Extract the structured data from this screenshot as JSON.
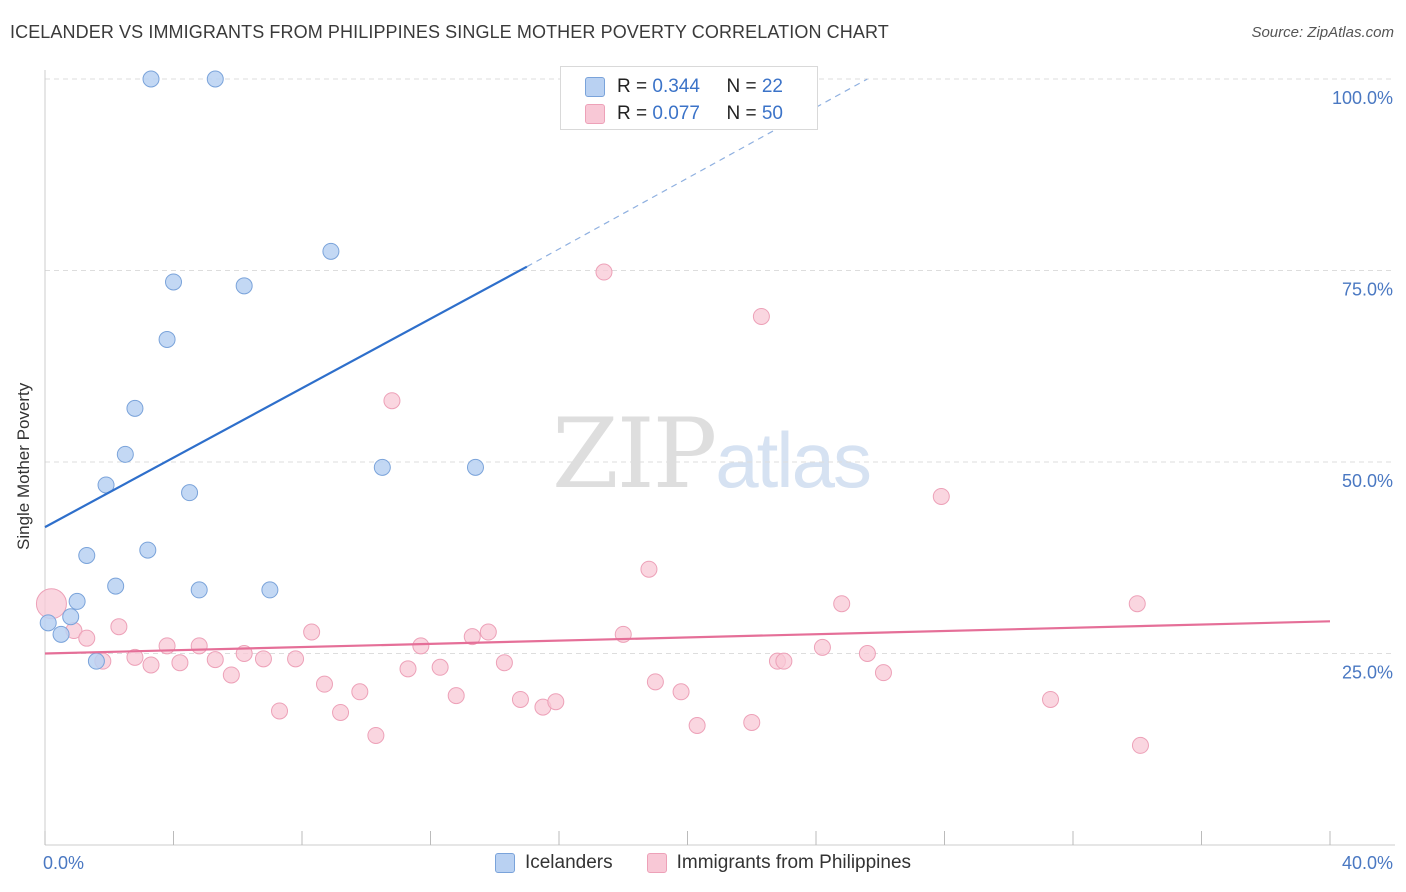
{
  "title": "ICELANDER VS IMMIGRANTS FROM PHILIPPINES SINGLE MOTHER POVERTY CORRELATION CHART",
  "source": "Source: ZipAtlas.com",
  "watermark": {
    "part1": "ZIP",
    "part2": "atlas"
  },
  "legend_box": {
    "rows": [
      {
        "r_label": "R = ",
        "r_value": "0.344",
        "n_label": "N = ",
        "n_value": "22"
      },
      {
        "r_label": "R = ",
        "r_value": "0.077",
        "n_label": "N = ",
        "n_value": "50"
      }
    ]
  },
  "legend_bottom": [
    "Icelanders",
    "Immigrants from Philippines"
  ],
  "colors": {
    "blue_fill": "#b9d1f2",
    "blue_stroke": "#7aa3da",
    "blue_line": "#2e6fcb",
    "pink_fill": "#f8c8d6",
    "pink_stroke": "#eda1b8",
    "pink_line": "#e56f98",
    "grid": "#dddddd",
    "tick_text": "#4a78c2"
  },
  "chart_data": {
    "type": "scatter",
    "title": "ICELANDER VS IMMIGRANTS FROM PHILIPPINES SINGLE MOTHER POVERTY CORRELATION CHART",
    "xlabel": "",
    "ylabel": "Single Mother Poverty",
    "xlim": [
      0,
      40
    ],
    "ylim": [
      0,
      100
    ],
    "x_tick_labels": [
      "0.0%",
      "40.0%"
    ],
    "y_tick_values": [
      25,
      50,
      75,
      100
    ],
    "y_tick_labels": [
      "25.0%",
      "50.0%",
      "75.0%",
      "100.0%"
    ],
    "grid": true,
    "legend_placement": "bottom",
    "series": [
      {
        "name": "Icelanders",
        "r": 0.344,
        "n": 22,
        "trend": {
          "x": [
            0,
            15
          ],
          "y": [
            41.5,
            75.5
          ],
          "dashed_to": [
            25.6,
            100
          ]
        },
        "points": [
          [
            3.3,
            100
          ],
          [
            5.3,
            100
          ],
          [
            8.9,
            77.5
          ],
          [
            4.0,
            73.5
          ],
          [
            6.2,
            73.0
          ],
          [
            3.8,
            66.0
          ],
          [
            2.8,
            57.0
          ],
          [
            2.5,
            51.0
          ],
          [
            10.5,
            49.3
          ],
          [
            13.4,
            49.3
          ],
          [
            1.9,
            47.0
          ],
          [
            4.5,
            46.0
          ],
          [
            3.2,
            38.5
          ],
          [
            1.3,
            37.8
          ],
          [
            2.2,
            33.8
          ],
          [
            4.8,
            33.3
          ],
          [
            7.0,
            33.3
          ],
          [
            1.0,
            31.8
          ],
          [
            0.8,
            29.8
          ],
          [
            0.1,
            29.0
          ],
          [
            0.5,
            27.5
          ],
          [
            1.6,
            24.0
          ]
        ]
      },
      {
        "name": "Immigrants from Philippines",
        "r": 0.077,
        "n": 50,
        "trend": {
          "x": [
            0,
            40
          ],
          "y": [
            25.0,
            29.2
          ]
        },
        "points": [
          [
            0.2,
            31.5
          ],
          [
            0.9,
            28.0
          ],
          [
            1.3,
            27.0
          ],
          [
            2.3,
            28.5
          ],
          [
            1.8,
            24.0
          ],
          [
            2.8,
            24.5
          ],
          [
            3.3,
            23.5
          ],
          [
            3.8,
            26.0
          ],
          [
            4.2,
            23.8
          ],
          [
            4.8,
            26.0
          ],
          [
            5.3,
            24.2
          ],
          [
            5.8,
            22.2
          ],
          [
            6.2,
            25.0
          ],
          [
            6.8,
            24.3
          ],
          [
            7.3,
            17.5
          ],
          [
            7.8,
            24.3
          ],
          [
            8.3,
            27.8
          ],
          [
            8.7,
            21.0
          ],
          [
            9.2,
            17.3
          ],
          [
            9.8,
            20.0
          ],
          [
            10.3,
            14.3
          ],
          [
            10.8,
            58.0
          ],
          [
            11.3,
            23.0
          ],
          [
            11.7,
            26.0
          ],
          [
            12.3,
            23.2
          ],
          [
            12.8,
            19.5
          ],
          [
            13.3,
            27.2
          ],
          [
            13.8,
            27.8
          ],
          [
            14.3,
            23.8
          ],
          [
            14.8,
            19.0
          ],
          [
            15.5,
            18.0
          ],
          [
            15.9,
            18.7
          ],
          [
            17.4,
            74.8
          ],
          [
            18.0,
            27.5
          ],
          [
            18.8,
            36.0
          ],
          [
            19.0,
            21.3
          ],
          [
            19.8,
            20.0
          ],
          [
            20.3,
            15.6
          ],
          [
            22.0,
            16.0
          ],
          [
            22.3,
            69.0
          ],
          [
            22.8,
            24.0
          ],
          [
            23.0,
            24.0
          ],
          [
            24.2,
            25.8
          ],
          [
            24.8,
            31.5
          ],
          [
            25.6,
            25.0
          ],
          [
            26.1,
            22.5
          ],
          [
            27.9,
            45.5
          ],
          [
            31.3,
            19.0
          ],
          [
            34.0,
            31.5
          ],
          [
            34.1,
            13.0
          ]
        ]
      }
    ]
  }
}
